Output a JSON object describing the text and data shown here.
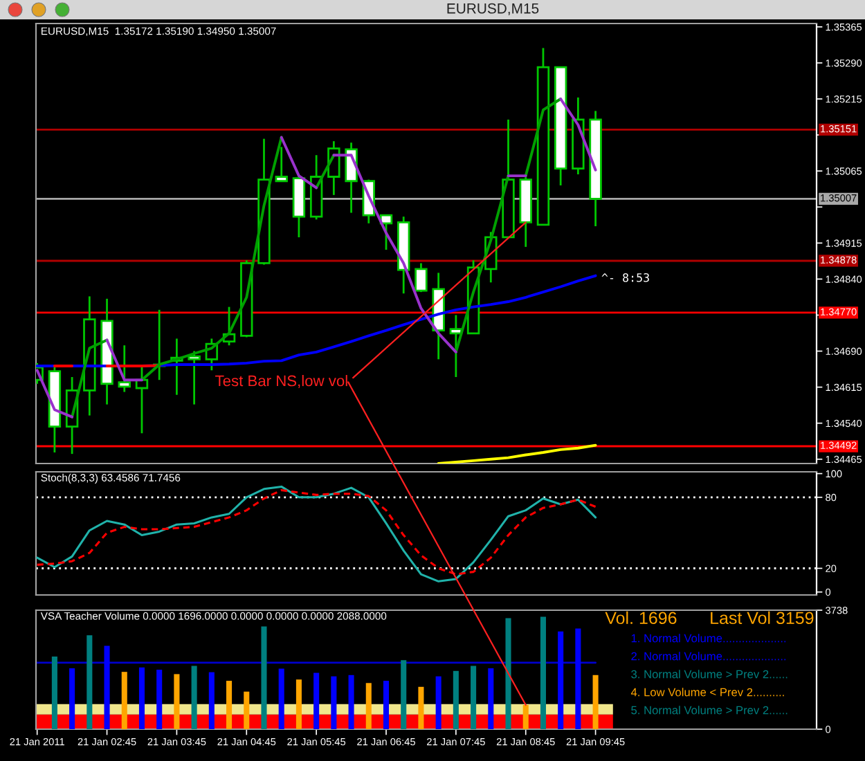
{
  "chart_data": [
    {
      "type": "candlestick",
      "title": "EURUSD,M15",
      "subtitle": "EURUSD,M15  1.35172 1.35190 1.34950 1.35007",
      "x": [
        "2011-01-21T01:45",
        "2011-01-21T02:00",
        "2011-01-21T02:15",
        "2011-01-21T02:30",
        "2011-01-21T02:45",
        "2011-01-21T03:00",
        "2011-01-21T03:15",
        "2011-01-21T03:30",
        "2011-01-21T03:45",
        "2011-01-21T04:00",
        "2011-01-21T04:15",
        "2011-01-21T04:30",
        "2011-01-21T04:45",
        "2011-01-21T05:00",
        "2011-01-21T05:15",
        "2011-01-21T05:30",
        "2011-01-21T05:45",
        "2011-01-21T06:00",
        "2011-01-21T06:15",
        "2011-01-21T06:30",
        "2011-01-21T06:45",
        "2011-01-21T07:00",
        "2011-01-21T07:15",
        "2011-01-21T07:30",
        "2011-01-21T07:45",
        "2011-01-21T08:00",
        "2011-01-21T08:15",
        "2011-01-21T08:30",
        "2011-01-21T08:45",
        "2011-01-21T09:00",
        "2011-01-21T09:15",
        "2011-01-21T09:30",
        "2011-01-21T09:45"
      ],
      "ohlc": [
        [
          1.3463,
          1.34665,
          1.34622,
          1.34656
        ],
        [
          1.34648,
          1.34659,
          1.34479,
          1.34533
        ],
        [
          1.34533,
          1.34636,
          1.34476,
          1.34608
        ],
        [
          1.34608,
          1.34804,
          1.34556,
          1.34756
        ],
        [
          1.34753,
          1.34799,
          1.34579,
          1.34622
        ],
        [
          1.34625,
          1.34702,
          1.34605,
          1.34616
        ],
        [
          1.34613,
          1.34659,
          1.34519,
          1.3463
        ],
        [
          1.34662,
          1.34776,
          1.3463,
          1.34659
        ],
        [
          1.3467,
          1.34716,
          1.34599,
          1.34676
        ],
        [
          1.34679,
          1.3469,
          1.34579,
          1.34673
        ],
        [
          1.34673,
          1.34716,
          1.3465,
          1.34705
        ],
        [
          1.3471,
          1.34782,
          1.34702,
          1.34725
        ],
        [
          1.34722,
          1.34879,
          1.34719,
          1.34873
        ],
        [
          1.34873,
          1.35132,
          1.3487,
          1.35047
        ],
        [
          1.35053,
          1.35115,
          1.35044,
          1.35044
        ],
        [
          1.3505,
          1.35055,
          1.34927,
          1.3497
        ],
        [
          1.3497,
          1.35098,
          1.34964,
          1.35053
        ],
        [
          1.35053,
          1.35127,
          1.35015,
          1.35112
        ],
        [
          1.3511,
          1.35124,
          1.34978,
          1.35044
        ],
        [
          1.35044,
          1.35047,
          1.34956,
          1.34973
        ],
        [
          1.34973,
          1.34973,
          1.34901,
          1.34956
        ],
        [
          1.34958,
          1.3497,
          1.3481,
          1.34859
        ],
        [
          1.34861,
          1.34873,
          1.34813,
          1.34816
        ],
        [
          1.34819,
          1.34853,
          1.34673,
          1.34733
        ],
        [
          1.34736,
          1.34765,
          1.34636,
          1.34727
        ],
        [
          1.34727,
          1.34879,
          1.34727,
          1.34864
        ],
        [
          1.34861,
          1.34938,
          1.34833,
          1.34927
        ],
        [
          1.34927,
          1.35172,
          1.34927,
          1.35047
        ],
        [
          1.35047,
          1.35058,
          1.34907,
          1.34958
        ],
        [
          1.34953,
          1.35321,
          1.34953,
          1.35281
        ],
        [
          1.35281,
          1.35281,
          1.35035,
          1.3507
        ],
        [
          1.3507,
          1.35218,
          1.35058,
          1.35172
        ],
        [
          1.35172,
          1.3519,
          1.3495,
          1.35007
        ]
      ],
      "color": "#00c800",
      "colors": [
        "#000000",
        "#ffffff",
        "#000000",
        "#000000",
        "#ffffff",
        "#ffffff",
        "#000000",
        "#ffffff",
        "#000000",
        "#ffffff",
        "#000000",
        "#000000",
        "#000000",
        "#000000",
        "#ffffff",
        "#ffffff",
        "#000000",
        "#000000",
        "#ffffff",
        "#ffffff",
        "#ffffff",
        "#ffffff",
        "#ffffff",
        "#ffffff",
        "#ffffff",
        "#000000",
        "#000000",
        "#000000",
        "#ffffff",
        "#000000",
        "#ffffff",
        "#000000",
        "#ffffff"
      ],
      "series": [
        {
          "type": "line",
          "color": "#0000ff",
          "values": [
            1.34659,
            1.34659,
            1.34659,
            1.34659,
            1.34659,
            1.34659,
            1.34659,
            1.3466,
            1.34662,
            1.34662,
            1.34662,
            1.34663,
            1.34665,
            1.34669,
            1.3467,
            1.34682,
            1.34688,
            1.34699,
            1.3471,
            1.34722,
            1.34733,
            1.34745,
            1.34756,
            1.34767,
            1.34776,
            1.34782,
            1.34787,
            1.34793,
            1.34802,
            1.34813,
            1.34824,
            1.34836,
            1.34847
          ]
        },
        {
          "type": "line",
          "color": "#ff0000",
          "values": [
            null,
            1.34659,
            1.34659,
            null,
            1.34659,
            1.34659,
            1.34659,
            1.3466,
            null,
            null,
            null,
            null,
            null,
            null,
            null,
            null,
            null,
            null,
            null,
            null,
            null,
            null,
            null,
            null,
            null,
            null,
            null,
            null,
            null,
            null,
            null,
            null,
            null
          ]
        },
        {
          "type": "line",
          "color": "#00a000",
          "x": [
            "2011-01-21T02:15",
            "2011-01-21T02:30",
            "2011-01-21T02:45",
            "2011-01-21T03:00",
            "2011-01-21T03:15",
            "2011-01-21T03:30",
            "2011-01-21T03:45",
            "2011-01-21T04:00",
            "2011-01-21T04:15",
            "2011-01-21T04:30",
            "2011-01-21T04:45",
            "2011-01-21T05:00",
            "2011-01-21T05:15",
            "2011-01-21T05:30",
            "2011-01-21T05:45",
            "2011-01-21T06:00",
            "2011-01-21T06:15",
            "2011-01-21T07:45",
            "2011-01-21T08:00",
            "2011-01-21T08:15",
            "2011-01-21T08:30",
            "2011-01-21T08:37",
            "2011-01-21T08:45",
            "2011-01-21T09:00",
            "2011-01-21T09:15"
          ],
          "values": [
            1.34553,
            1.34696,
            1.34713,
            null,
            1.3463,
            1.34662,
            1.34673,
            1.34685,
            1.34696,
            1.34727,
            1.34802,
            1.34993,
            1.35135,
            null,
            1.3503,
            1.35098,
            null,
            1.34688,
            1.34813,
            1.34921,
            1.35055,
            null,
            1.35055,
            1.35192,
            1.35215
          ]
        },
        {
          "type": "line",
          "color": "#9932cc",
          "x": [
            "2011-01-21T01:45",
            "2011-01-21T02:00",
            "2011-01-21T02:15",
            "2011-01-21T02:30",
            "2011-01-21T02:45",
            "2011-01-21T03:00",
            "2011-01-21T03:15",
            "2011-01-21T03:30",
            "2011-01-21T05:15",
            "2011-01-21T05:30",
            "2011-01-21T05:45",
            "2011-01-21T05:52",
            "2011-01-21T06:00",
            "2011-01-21T06:15",
            "2011-01-21T06:30",
            "2011-01-21T06:45",
            "2011-01-21T07:00",
            "2011-01-21T07:15",
            "2011-01-21T07:30",
            "2011-01-21T07:45",
            "2011-01-21T08:00",
            "2011-01-21T08:30",
            "2011-01-21T08:45",
            "2011-01-21T09:00",
            "2011-01-21T09:15",
            "2011-01-21T09:30",
            "2011-01-21T09:45"
          ],
          "values": [
            1.3465,
            1.34568,
            1.34553,
            null,
            1.34713,
            1.3463,
            1.3463,
            null,
            1.35135,
            1.35055,
            1.3503,
            null,
            1.35098,
            1.35098,
            1.35013,
            1.34936,
            1.34873,
            1.34779,
            1.34727,
            1.34688,
            null,
            1.35055,
            1.35055,
            null,
            1.35215,
            1.35161,
            1.35067
          ]
        },
        {
          "type": "line",
          "color": "#ffff00",
          "x": [
            "2011-01-21T07:30",
            "2011-01-21T07:45",
            "2011-01-21T08:00",
            "2011-01-21T08:15",
            "2011-01-21T08:30",
            "2011-01-21T08:45",
            "2011-01-21T09:00",
            "2011-01-21T09:15",
            "2011-01-21T09:30",
            "2011-01-21T09:45"
          ],
          "values": [
            1.34456,
            1.34459,
            1.34462,
            1.34465,
            1.34468,
            1.34474,
            1.34479,
            1.34485,
            1.34488,
            1.34494
          ]
        }
      ],
      "xlim": [
        "2011-01-21T01:44",
        "2011-01-21T12:55"
      ],
      "ylim": [
        1.34456,
        1.35372
      ],
      "yticks": [
        1.34465,
        {
          "value": 1.3454,
          "label": "1.34540"
        },
        1.34615,
        {
          "value": 1.3469,
          "label": "1.34690"
        },
        {
          "value": 1.34765,
          "label": null
        },
        {
          "value": 1.3484,
          "label": "1.34840"
        },
        1.34915,
        {
          "value": 1.3499,
          "label": null
        },
        1.35065,
        {
          "value": 1.3514,
          "label": null
        },
        1.35215,
        {
          "value": 1.3529,
          "label": "1.35290"
        },
        1.35365
      ],
      "tick_labels": "y",
      "ref_lines": [
        {
          "axis": "y",
          "value": 1.35151,
          "label": "1.35151",
          "color": "#b00000"
        },
        {
          "axis": "y",
          "value": 1.35007,
          "label": "1.35007",
          "color": "#a8a8a8"
        },
        {
          "axis": "y",
          "value": 1.34878,
          "label": "1.34878",
          "color": "#b00000"
        },
        {
          "axis": "y",
          "value": 1.3477,
          "label": "1.34770",
          "color": "#ff0000"
        },
        {
          "axis": "y",
          "value": 1.34492,
          "label": "1.34492",
          "color": "#ff0000"
        }
      ],
      "annotations": [
        {
          "text": "Test Bar NS,low vol",
          "x": "2011-01-21T08:45",
          "y": 1.34958
        },
        {
          "text": "^- 8:53",
          "x": "2011-01-21T09:45",
          "y": 1.34847
        }
      ]
    },
    {
      "type": "line",
      "title": "Stoch(8,3,3) 63.4586 71.7456",
      "x": [
        "2011-01-21T01:45",
        "2011-01-21T02:00",
        "2011-01-21T02:15",
        "2011-01-21T02:30",
        "2011-01-21T02:45",
        "2011-01-21T03:00",
        "2011-01-21T03:15",
        "2011-01-21T03:30",
        "2011-01-21T03:45",
        "2011-01-21T04:00",
        "2011-01-21T04:15",
        "2011-01-21T04:30",
        "2011-01-21T04:45",
        "2011-01-21T05:00",
        "2011-01-21T05:15",
        "2011-01-21T05:30",
        "2011-01-21T05:45",
        "2011-01-21T06:00",
        "2011-01-21T06:15",
        "2011-01-21T06:30",
        "2011-01-21T06:45",
        "2011-01-21T07:00",
        "2011-01-21T07:15",
        "2011-01-21T07:30",
        "2011-01-21T07:45",
        "2011-01-21T08:00",
        "2011-01-21T08:15",
        "2011-01-21T08:30",
        "2011-01-21T08:45",
        "2011-01-21T09:00",
        "2011-01-21T09:15",
        "2011-01-21T09:30",
        "2011-01-21T09:45"
      ],
      "series": [
        {
          "color": "#20b2aa",
          "values": [
            29,
            21,
            30,
            52,
            60,
            57,
            48,
            51,
            57,
            58,
            63,
            66,
            80,
            87,
            89,
            80,
            80,
            83,
            88,
            80,
            58,
            35,
            15,
            9,
            11,
            25,
            44,
            64,
            69,
            79,
            74,
            78,
            63
          ]
        },
        {
          "color": "#ff0000",
          "line_style": "dashed",
          "values": [
            23,
            24,
            26,
            33,
            50,
            55,
            53,
            53,
            54,
            55,
            59,
            63,
            69,
            79,
            86,
            84,
            82,
            83,
            83,
            81,
            69,
            48,
            31,
            20,
            15,
            17,
            29,
            48,
            63,
            71,
            74,
            78,
            72
          ]
        }
      ],
      "xlim": [
        "2011-01-21T01:44",
        "2011-01-21T12:55"
      ],
      "ylim": [
        -2.5,
        101.5
      ],
      "yticks": [
        0,
        20,
        80,
        100
      ],
      "tick_labels": "y",
      "ref_lines": [
        {
          "axis": "y",
          "value": 80,
          "color": "#ffffff",
          "line_style": "dotted"
        },
        {
          "axis": "y",
          "value": 20,
          "color": "#ffffff",
          "line_style": "dotted"
        }
      ]
    },
    {
      "type": "bar",
      "title": "VSA Teacher Volume 0.0000 1696.0000 0.0000 0.0000 0.0000 2088.0000",
      "x": [
        "2011-01-21T02:00",
        "2011-01-21T02:15",
        "2011-01-21T02:30",
        "2011-01-21T02:45",
        "2011-01-21T03:00",
        "2011-01-21T03:15",
        "2011-01-21T03:30",
        "2011-01-21T03:45",
        "2011-01-21T04:00",
        "2011-01-21T04:15",
        "2011-01-21T04:30",
        "2011-01-21T04:45",
        "2011-01-21T05:00",
        "2011-01-21T05:15",
        "2011-01-21T05:30",
        "2011-01-21T05:45",
        "2011-01-21T06:00",
        "2011-01-21T06:15",
        "2011-01-21T06:30",
        "2011-01-21T06:45",
        "2011-01-21T07:00",
        "2011-01-21T07:15",
        "2011-01-21T07:30",
        "2011-01-21T07:45",
        "2011-01-21T08:00",
        "2011-01-21T08:15",
        "2011-01-21T08:30",
        "2011-01-21T08:45",
        "2011-01-21T09:00",
        "2011-01-21T09:15",
        "2011-01-21T09:30",
        "2011-01-21T09:45"
      ],
      "values": [
        2280,
        1910,
        2950,
        2620,
        1800,
        1940,
        1870,
        1730,
        1990,
        1790,
        1520,
        1180,
        3230,
        1900,
        1560,
        1770,
        1660,
        1700,
        1450,
        1520,
        2170,
        1330,
        1660,
        1830,
        1990,
        1910,
        3490,
        760,
        3530,
        3070,
        3160,
        1700
      ],
      "colors": [
        "#008080",
        "#0000ff",
        "#008080",
        "#0000ff",
        "#ffa500",
        "#0000ff",
        "#0000ff",
        "#ffa500",
        "#008080",
        "#0000ff",
        "#ffa500",
        "#ffa500",
        "#008080",
        "#0000ff",
        "#ffa500",
        "#0000ff",
        "#0000ff",
        "#0000ff",
        "#ffa500",
        "#0000ff",
        "#008080",
        "#ffa500",
        "#0000ff",
        "#008080",
        "#008080",
        "#0000ff",
        "#008080",
        "#ffa500",
        "#008080",
        "#0000ff",
        "#0000ff",
        "#ffa500"
      ],
      "xlim": [
        "2011-01-21T01:44",
        "2011-01-21T12:55"
      ],
      "ylim": [
        0,
        3738
      ],
      "xticks": [
        {
          "value": "2011-01-21T01:45",
          "label": "21 Jan 2011"
        },
        {
          "value": "2011-01-21T02:45",
          "label": "21 Jan 02:45"
        },
        {
          "value": "2011-01-21T03:45",
          "label": "21 Jan 03:45"
        },
        {
          "value": "2011-01-21T04:45",
          "label": "21 Jan 04:45"
        },
        {
          "value": "2011-01-21T05:45",
          "label": "21 Jan 05:45"
        },
        {
          "value": "2011-01-21T06:45",
          "label": "21 Jan 06:45"
        },
        {
          "value": "2011-01-21T07:45",
          "label": "21 Jan 07:45"
        },
        {
          "value": "2011-01-21T08:45",
          "label": "21 Jan 08:45"
        },
        {
          "value": "2011-01-21T09:45",
          "label": "21 Jan 09:45"
        }
      ],
      "yticks": [
        0,
        3738
      ],
      "ref_lines": [
        {
          "axis": "y",
          "value": 2088,
          "color": "#0000cd"
        }
      ],
      "bands": [
        {
          "axis": "y",
          "from": 0,
          "to": 460,
          "color": "#ff0000"
        },
        {
          "axis": "y",
          "from": 460,
          "to": 790,
          "color": "#f0e68c"
        }
      ],
      "annotations": [
        "Vol. 1696",
        "Last Vol 3159",
        "1. Normal Volume....................",
        "2. Normal Volume....................",
        "3. Normal Volume > Prev 2......",
        "4. Low Volume < Prev 2..........",
        "5. Normal Volume > Prev 2......"
      ]
    }
  ]
}
